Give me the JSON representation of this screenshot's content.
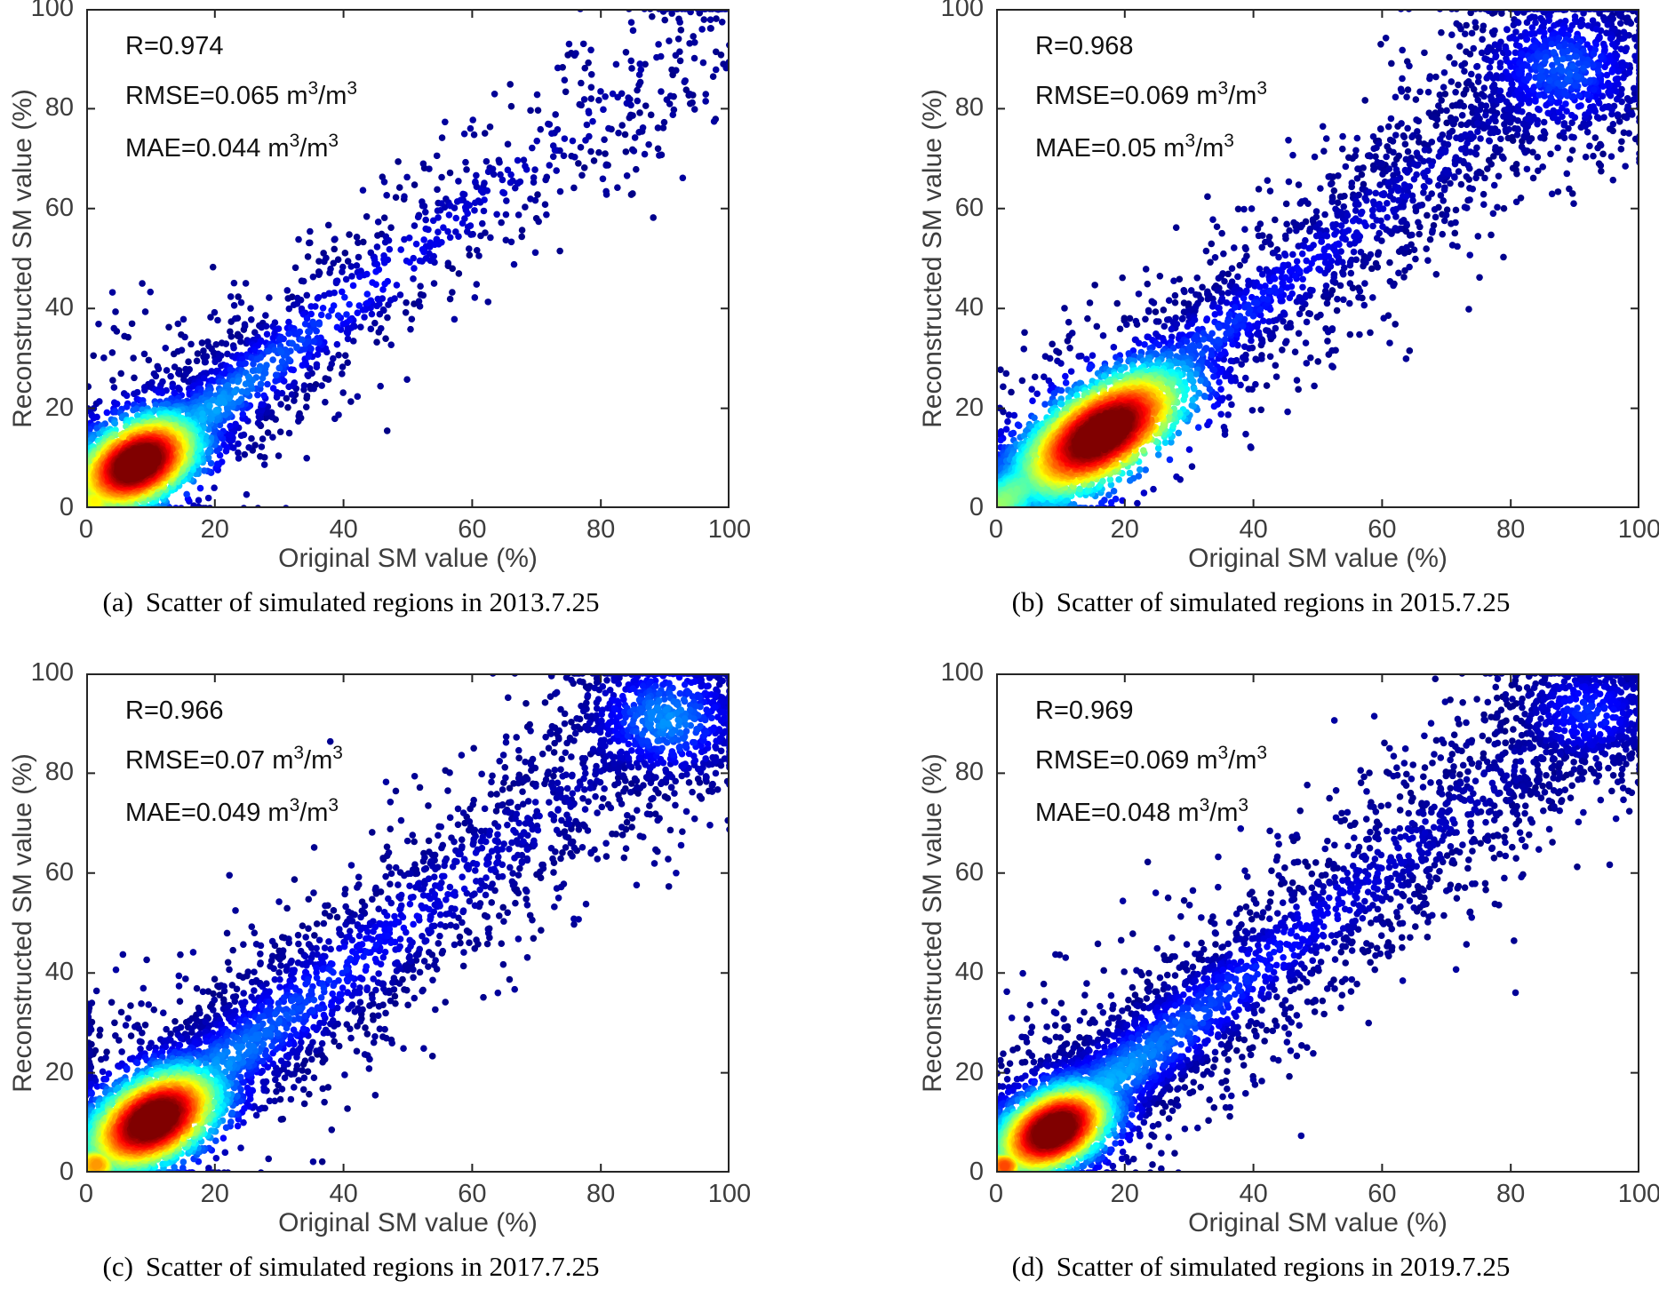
{
  "chart_data": {
    "type": "scatter",
    "variant": "density scatter (hexbin-style, jet colormap, dense = red, sparse = dark blue)",
    "xlabel": "Original SM value (%)",
    "ylabel": "Reconstructed SM value (%)",
    "xlim": [
      0,
      100
    ],
    "ylim": [
      0,
      100
    ],
    "x_ticks": [
      0,
      20,
      40,
      60,
      80,
      100
    ],
    "y_ticks": [
      0,
      20,
      40,
      60,
      80,
      100
    ],
    "grid": false,
    "colormap": "jet",
    "marker_color_low_density": "#000090",
    "trend": "points concentrated along the 1:1 diagonal; dense hotspot at low SM values",
    "panels": [
      {
        "id": "a",
        "caption_label": "(a)",
        "caption_text": "Scatter of simulated regions in 2013.7.25",
        "stats": {
          "r": "R=0.974",
          "rmse": "RMSE=0.065 m³/m³",
          "mae": "MAE=0.044 m³/m³"
        },
        "hotspot_center": [
          8,
          9
        ],
        "density_model": {
          "seed": 11,
          "band": {
            "n": 2600,
            "exp_frac": 0.78,
            "exp_scale": 13,
            "sigma": 5.5,
            "sigma_slope": 0.05
          },
          "spread": {
            "n": 520,
            "sigma": 14
          },
          "hotspot": {
            "cx": 8,
            "cy": 9,
            "major": 4.4,
            "minor": 2.9,
            "n": 1350
          },
          "origin": {
            "size": 3.2,
            "n": 240,
            "level": 0.62
          },
          "top": {
            "n": 0,
            "cx": 90,
            "cy": 90,
            "sigma": 8,
            "level": 0
          },
          "axis_col": {
            "n": 45,
            "ymax": 20
          },
          "random": {
            "n": 18
          }
        }
      },
      {
        "id": "b",
        "caption_label": "(b)",
        "caption_text": "Scatter of simulated regions in 2015.7.25",
        "stats": {
          "r": "R=0.968",
          "rmse": "RMSE=0.069 m³/m³",
          "mae": "MAE=0.05 m³/m³"
        },
        "hotspot_center": [
          16,
          15
        ],
        "density_model": {
          "seed": 22,
          "band": {
            "n": 3000,
            "exp_frac": 0.55,
            "exp_scale": 17,
            "sigma": 5.5,
            "sigma_slope": 0.05
          },
          "spread": {
            "n": 600,
            "sigma": 13
          },
          "hotspot": {
            "cx": 16.5,
            "cy": 15,
            "major": 6.3,
            "minor": 3.2,
            "n": 2000
          },
          "origin": {
            "size": 2.3,
            "n": 130,
            "level": 0.5
          },
          "top": {
            "n": 650,
            "cx": 88,
            "cy": 88,
            "sigma": 9,
            "level": 0.2
          },
          "axis_col": {
            "n": 20,
            "ymax": 10
          },
          "random": {
            "n": 22
          }
        }
      },
      {
        "id": "c",
        "caption_label": "(c)",
        "caption_text": "Scatter of simulated regions in 2017.7.25",
        "stats": {
          "r": "R=0.966",
          "rmse": "RMSE=0.07 m³/m³",
          "mae": "MAE=0.049 m³/m³"
        },
        "hotspot_center": [
          10,
          10
        ],
        "density_model": {
          "seed": 33,
          "band": {
            "n": 3300,
            "exp_frac": 0.62,
            "exp_scale": 15,
            "sigma": 6.5,
            "sigma_slope": 0.05
          },
          "spread": {
            "n": 650,
            "sigma": 15
          },
          "hotspot": {
            "cx": 10.5,
            "cy": 10.5,
            "major": 4.8,
            "minor": 3.0,
            "n": 1500
          },
          "origin": {
            "size": 3.4,
            "n": 270,
            "level": 0.72
          },
          "top": {
            "n": 600,
            "cx": 90,
            "cy": 91,
            "sigma": 8,
            "level": 0.26
          },
          "axis_col": {
            "n": 90,
            "ymax": 34
          },
          "random": {
            "n": 22
          }
        }
      },
      {
        "id": "d",
        "caption_label": "(d)",
        "caption_text": "Scatter of simulated regions in 2019.7.25",
        "stats": {
          "r": "R=0.969",
          "rmse": "RMSE=0.069 m³/m³",
          "mae": "MAE=0.048 m³/m³"
        },
        "hotspot_center": [
          9,
          8.5
        ],
        "density_model": {
          "seed": 44,
          "band": {
            "n": 3700,
            "exp_frac": 0.58,
            "exp_scale": 14,
            "sigma": 6.0,
            "sigma_slope": 0.05
          },
          "spread": {
            "n": 700,
            "sigma": 14
          },
          "hotspot": {
            "cx": 9,
            "cy": 8.5,
            "major": 4.1,
            "minor": 2.7,
            "n": 1300
          },
          "origin": {
            "size": 2.8,
            "n": 210,
            "level": 0.8
          },
          "top": {
            "n": 420,
            "cx": 92,
            "cy": 92,
            "sigma": 7,
            "level": 0.16
          },
          "axis_col": {
            "n": 40,
            "ymax": 15
          },
          "random": {
            "n": 20
          }
        }
      }
    ],
    "axis_style": {
      "box_color": "#252525",
      "tick_label_color": "#3d3d3d",
      "tick_direction": "in"
    }
  }
}
